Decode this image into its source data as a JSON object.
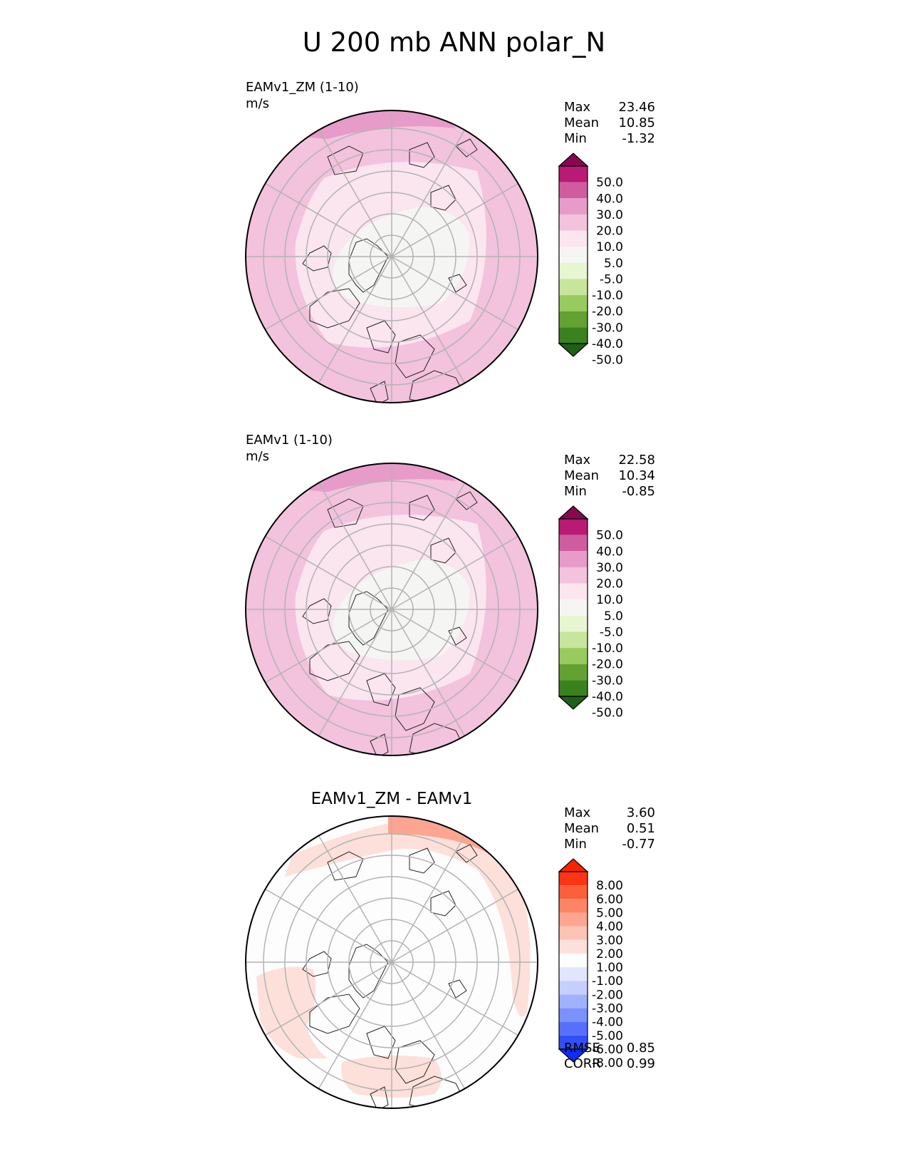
{
  "title": "U 200 mb ANN polar_N",
  "panels": [
    {
      "label": "EAMv1_ZM (1-10)",
      "units": "m/s",
      "stats": {
        "max_label": "Max",
        "max": "23.46",
        "mean_label": "Mean",
        "mean": "10.85",
        "min_label": "Min",
        "min": "-1.32"
      }
    },
    {
      "label": "EAMv1 (1-10)",
      "units": "m/s",
      "stats": {
        "max_label": "Max",
        "max": "22.58",
        "mean_label": "Mean",
        "mean": "10.34",
        "min_label": "Min",
        "min": "-0.85"
      }
    },
    {
      "label": "EAMv1_ZM - EAMv1",
      "stats": {
        "max_label": "Max",
        "max": "3.60",
        "mean_label": "Mean",
        "mean": "0.51",
        "min_label": "Min",
        "min": "-0.77"
      },
      "rmse_label": "RMSE",
      "rmse": "0.85",
      "corr_label": "CORR",
      "corr": "0.99"
    }
  ],
  "chart_data": [
    {
      "type": "contourf-polar",
      "projection": "north polar stereographic",
      "variable": "U 200 mb",
      "season": "ANN",
      "units": "m/s",
      "run": "EAMv1_ZM (1-10)",
      "max": 23.46,
      "mean": 10.85,
      "min": -1.32,
      "levels": [
        "-50.0",
        "-40.0",
        "-30.0",
        "-20.0",
        "-10.0",
        "-5.0",
        "5.0",
        "10.0",
        "20.0",
        "30.0",
        "40.0",
        "50.0"
      ],
      "colors": [
        "#1f5f16",
        "#3a821d",
        "#62a132",
        "#98cb5f",
        "#c7e59c",
        "#e7f5d1",
        "#f5f5f3",
        "#fbe5ef",
        "#f3c2dd",
        "#e79bc8",
        "#d05ca0",
        "#b81a75",
        "#880751"
      ],
      "field": {
        "pole": 3,
        "mid": 10,
        "outer": 15,
        "edge_max": 23.5
      }
    },
    {
      "type": "contourf-polar",
      "projection": "north polar stereographic",
      "variable": "U 200 mb",
      "season": "ANN",
      "units": "m/s",
      "run": "EAMv1 (1-10)",
      "max": 22.58,
      "mean": 10.34,
      "min": -0.85,
      "levels": [
        "-50.0",
        "-40.0",
        "-30.0",
        "-20.0",
        "-10.0",
        "-5.0",
        "5.0",
        "10.0",
        "20.0",
        "30.0",
        "40.0",
        "50.0"
      ],
      "colors": [
        "#1f5f16",
        "#3a821d",
        "#62a132",
        "#98cb5f",
        "#c7e59c",
        "#e7f5d1",
        "#f5f5f3",
        "#fbe5ef",
        "#f3c2dd",
        "#e79bc8",
        "#d05ca0",
        "#b81a75",
        "#880751"
      ],
      "field": {
        "pole": 3,
        "mid": 9,
        "outer": 14,
        "edge_max": 22.6
      }
    },
    {
      "type": "contourf-polar",
      "projection": "north polar stereographic",
      "variable": "U 200 mb difference",
      "season": "ANN",
      "units": "m/s",
      "run": "EAMv1_ZM - EAMv1",
      "max": 3.6,
      "mean": 0.51,
      "min": -0.77,
      "rmse": 0.85,
      "corr": 0.99,
      "levels": [
        "-8.00",
        "-6.00",
        "-5.00",
        "-4.00",
        "-3.00",
        "-2.00",
        "-1.00",
        "1.00",
        "2.00",
        "3.00",
        "4.00",
        "5.00",
        "6.00",
        "8.00"
      ],
      "colors": [
        "#0b2cfa",
        "#2f4ffb",
        "#5570fb",
        "#7b91fc",
        "#a1b2fd",
        "#c6d0fe",
        "#e1e6fe",
        "#fdfdfd",
        "#fde0da",
        "#fdc3b5",
        "#fca591",
        "#fc8566",
        "#fc5f3b",
        "#fb3515",
        "#fb2200"
      ],
      "field": {
        "background": 0,
        "positive_patches": [
          1.5,
          1.5,
          1.5,
          3.6
        ]
      }
    }
  ],
  "colors": {
    "land_outline": "#222222",
    "gridline": "#b3b3b3",
    "circle_border": "#000000"
  }
}
